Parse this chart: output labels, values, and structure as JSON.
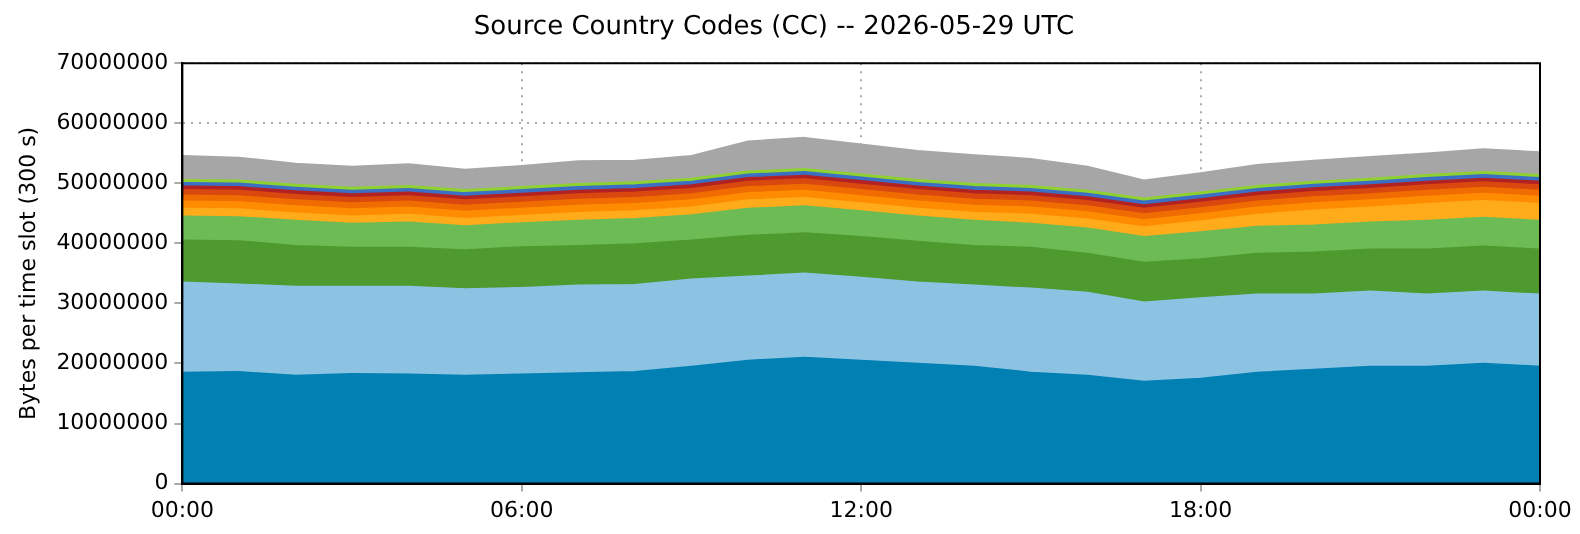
{
  "chart_data": {
    "type": "area",
    "stacked": true,
    "title": "Source Country Codes (CC) -- 2026-05-29 UTC",
    "ylabel": "Bytes per time slot (300 s)",
    "x": [
      0,
      1,
      2,
      3,
      4,
      5,
      6,
      7,
      8,
      9,
      10,
      11,
      12,
      13,
      14,
      15,
      16,
      17,
      18,
      19,
      20,
      21,
      22,
      23,
      24
    ],
    "xlim": [
      0,
      24
    ],
    "xticks": [
      {
        "value": 0,
        "label": "00:00"
      },
      {
        "value": 6,
        "label": "06:00"
      },
      {
        "value": 12,
        "label": "12:00"
      },
      {
        "value": 18,
        "label": "18:00"
      },
      {
        "value": 24,
        "label": "00:00"
      }
    ],
    "ylim": [
      0,
      70000000
    ],
    "yticks": [
      0,
      10000000,
      20000000,
      30000000,
      40000000,
      50000000,
      60000000,
      70000000
    ],
    "grid": true,
    "legend": false,
    "marker": "none",
    "series": [
      {
        "color": "#0080b3",
        "values": [
          18500000,
          18600000,
          18000000,
          18300000,
          18200000,
          18000000,
          18200000,
          18400000,
          18600000,
          19500000,
          20500000,
          21000000,
          20500000,
          20000000,
          19500000,
          18500000,
          18000000,
          17000000,
          17500000,
          18500000,
          19000000,
          19500000,
          19500000,
          20000000,
          19500000
        ]
      },
      {
        "color": "#8cc3e3",
        "values": [
          15000000,
          14600000,
          14800000,
          14500000,
          14600000,
          14400000,
          14400000,
          14600000,
          14500000,
          14500000,
          14000000,
          14000000,
          13800000,
          13500000,
          13500000,
          14000000,
          13800000,
          13200000,
          13400000,
          13000000,
          12500000,
          12500000,
          12000000,
          12000000,
          12000000
        ]
      },
      {
        "color": "#4e9a2e",
        "values": [
          7000000,
          7200000,
          6800000,
          6500000,
          6500000,
          6500000,
          6800000,
          6600000,
          6800000,
          6500000,
          6800000,
          6700000,
          6800000,
          6800000,
          6600000,
          6800000,
          6500000,
          6600000,
          6500000,
          6800000,
          7000000,
          7000000,
          7500000,
          7500000,
          7500000
        ]
      },
      {
        "color": "#6dbb55",
        "values": [
          4000000,
          4000000,
          4200000,
          4000000,
          4200000,
          4000000,
          4000000,
          4200000,
          4200000,
          4200000,
          4500000,
          4500000,
          4300000,
          4200000,
          4200000,
          4000000,
          4200000,
          4300000,
          4500000,
          4500000,
          4500000,
          4500000,
          4800000,
          4800000,
          4800000
        ]
      },
      {
        "color": "#ffab1a",
        "values": [
          1300000,
          1300000,
          1200000,
          1200000,
          1300000,
          1200000,
          1200000,
          1300000,
          1300000,
          1300000,
          1400000,
          1400000,
          1300000,
          1300000,
          1300000,
          1500000,
          1500000,
          1600000,
          1800000,
          2000000,
          2500000,
          2500000,
          2800000,
          2800000,
          2800000
        ]
      },
      {
        "color": "#ff8c00",
        "values": [
          1200000,
          1200000,
          1200000,
          1200000,
          1200000,
          1200000,
          1200000,
          1200000,
          1200000,
          1200000,
          1200000,
          1200000,
          1200000,
          1200000,
          1200000,
          1200000,
          1200000,
          1200000,
          1200000,
          1200000,
          1200000,
          1200000,
          1200000,
          1200000,
          1200000
        ]
      },
      {
        "color": "#f06c00",
        "values": [
          1000000,
          1000000,
          1000000,
          1000000,
          1000000,
          1000000,
          1000000,
          1000000,
          1000000,
          1000000,
          1000000,
          1000000,
          1000000,
          1000000,
          1000000,
          1000000,
          1000000,
          1000000,
          1000000,
          1000000,
          1000000,
          1000000,
          1000000,
          1000000,
          1000000
        ]
      },
      {
        "color": "#d9480f",
        "values": [
          900000,
          900000,
          900000,
          900000,
          900000,
          900000,
          900000,
          900000,
          900000,
          900000,
          900000,
          900000,
          900000,
          900000,
          900000,
          900000,
          900000,
          900000,
          900000,
          900000,
          900000,
          900000,
          900000,
          900000,
          900000
        ]
      },
      {
        "color": "#b22222",
        "values": [
          600000,
          600000,
          600000,
          600000,
          600000,
          600000,
          600000,
          600000,
          600000,
          600000,
          600000,
          600000,
          600000,
          600000,
          600000,
          600000,
          600000,
          600000,
          600000,
          600000,
          600000,
          600000,
          600000,
          600000,
          600000
        ]
      },
      {
        "color": "#3b6fc4",
        "values": [
          600000,
          600000,
          600000,
          600000,
          600000,
          600000,
          600000,
          600000,
          600000,
          600000,
          600000,
          600000,
          600000,
          600000,
          600000,
          600000,
          600000,
          600000,
          600000,
          600000,
          600000,
          600000,
          600000,
          600000,
          600000
        ]
      },
      {
        "color": "#8fd130",
        "values": [
          500000,
          500000,
          500000,
          500000,
          500000,
          500000,
          500000,
          500000,
          500000,
          500000,
          500000,
          500000,
          500000,
          500000,
          500000,
          500000,
          500000,
          500000,
          500000,
          500000,
          500000,
          500000,
          500000,
          500000,
          500000
        ]
      },
      {
        "color": "#a6a6a6",
        "values": [
          4000000,
          3800000,
          3500000,
          3500000,
          3600000,
          3400000,
          3500000,
          3800000,
          3600000,
          3800000,
          5000000,
          5200000,
          5000000,
          4800000,
          4800000,
          4500000,
          4000000,
          3000000,
          3200000,
          3500000,
          3500000,
          3600000,
          3600000,
          3800000,
          3800000
        ]
      }
    ]
  }
}
